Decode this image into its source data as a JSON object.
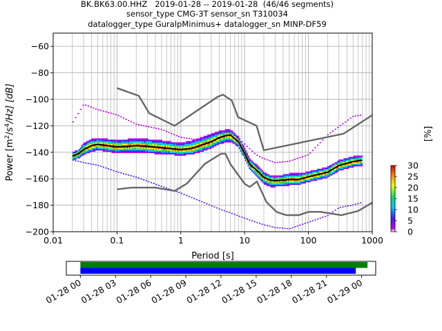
{
  "title_lines": [
    "BK.BK63.00.HHZ   2019-01-28 -- 2019-01-28  (46/46 segments)",
    "sensor_type CMG-3T sensor_sn T310034",
    "datalogger_type GuralpMinimus+ datalogger_sn MINP-DF59"
  ],
  "chart_data": [
    {
      "type": "heatmap",
      "subtype": "probabilistic-power-spectral-density",
      "xlabel": "Period [s]",
      "ylabel": "Power [m²/s⁴/Hz] [dB]",
      "ylabel_parts": [
        "Power [m",
        "2",
        "/s",
        "4",
        "/Hz] [dB]"
      ],
      "x_scale": "log",
      "xlim": [
        0.01,
        1000
      ],
      "ylim": [
        -200,
        -50
      ],
      "x_ticks": [
        0.01,
        0.1,
        1,
        10,
        100,
        1000
      ],
      "x_tick_labels": [
        "0.01",
        "0.1",
        "1",
        "10",
        "100",
        "1000"
      ],
      "y_ticks": [
        -200,
        -180,
        -160,
        -140,
        -120,
        -100,
        -80,
        -60
      ],
      "y_tick_labels": [
        "−200",
        "−180",
        "−160",
        "−140",
        "−120",
        "−100",
        "−80",
        "−60"
      ],
      "grid": true,
      "colorbar": {
        "label": "[%]",
        "range": [
          0,
          30
        ],
        "ticks": [
          0,
          5,
          10,
          15,
          20,
          25,
          30
        ],
        "tick_labels": [
          "0",
          "5",
          "10",
          "15",
          "20",
          "25",
          "30"
        ]
      },
      "colors": {
        "mean_line": "#000000",
        "noise_model": "#666666",
        "cmap": [
          "#ffffff",
          "#c000f0",
          "#4a1cff",
          "#00c8ff",
          "#00e070",
          "#f0ff00",
          "#ff8a00",
          "#e00000"
        ]
      },
      "noise_models": [
        {
          "name": "NHNM",
          "x": [
            0.1,
            0.22,
            0.32,
            0.8,
            3.8,
            4.6,
            6.3,
            7.9,
            15.4,
            20,
            354.8,
            1000
          ],
          "y": [
            -91.5,
            -97.4,
            -110.5,
            -120,
            -98,
            -96.5,
            -101,
            -113.5,
            -120,
            -138.5,
            -126,
            -112
          ]
        },
        {
          "name": "NLNM",
          "x": [
            0.1,
            0.17,
            0.4,
            0.8,
            1.24,
            2.4,
            4.3,
            5,
            6,
            10,
            12,
            15.6,
            21.9,
            31.6,
            45,
            70,
            101,
            154,
            328,
            600,
            1000
          ],
          "y": [
            -168,
            -166.7,
            -166.7,
            -169.2,
            -163.7,
            -148.6,
            -141.1,
            -141.1,
            -149,
            -163.8,
            -166.2,
            -162.1,
            -177.5,
            -185,
            -187.5,
            -187.5,
            -185,
            -185,
            -187.5,
            -184.4,
            -178
          ]
        }
      ],
      "mean_curve": {
        "x": [
          0.02,
          0.025,
          0.03,
          0.04,
          0.05,
          0.07,
          0.1,
          0.15,
          0.2,
          0.3,
          0.5,
          0.8,
          1,
          1.5,
          2,
          3,
          4,
          5,
          6,
          8,
          10,
          12,
          15,
          20,
          25,
          30,
          40,
          50,
          70,
          100,
          150,
          200,
          300,
          500,
          700
        ],
        "y": [
          -143,
          -141,
          -138,
          -135,
          -134,
          -135,
          -136,
          -135.5,
          -135,
          -135.5,
          -136.5,
          -137.5,
          -138,
          -137,
          -135,
          -132,
          -129,
          -127.5,
          -127,
          -132,
          -141,
          -149,
          -153,
          -159,
          -161,
          -161.5,
          -161,
          -160.5,
          -160.5,
          -158.5,
          -156.5,
          -155,
          -150,
          -147,
          -146
        ]
      },
      "density_band": {
        "x": [
          0.02,
          0.025,
          0.03,
          0.04,
          0.05,
          0.07,
          0.1,
          0.15,
          0.2,
          0.3,
          0.5,
          0.8,
          1,
          1.5,
          2,
          3,
          4,
          5,
          6,
          8,
          10,
          12,
          15,
          20,
          25,
          30,
          40,
          50,
          70,
          100,
          150,
          200,
          300,
          500,
          700
        ],
        "upper": [
          -140,
          -138,
          -133,
          -130,
          -129.5,
          -130,
          -130.5,
          -130,
          -129.5,
          -130,
          -131,
          -132.5,
          -133,
          -131,
          -129,
          -126,
          -124,
          -123,
          -123,
          -128,
          -137,
          -145,
          -149,
          -155,
          -157.5,
          -158,
          -157,
          -156,
          -156,
          -154.5,
          -152.5,
          -151,
          -146,
          -143,
          -143
        ],
        "lower": [
          -146,
          -144.5,
          -142,
          -139.5,
          -138.5,
          -139.5,
          -140.5,
          -140,
          -140,
          -140.5,
          -141.5,
          -142,
          -142.5,
          -141.5,
          -140,
          -137,
          -134,
          -132.5,
          -132,
          -136,
          -145,
          -153,
          -158,
          -164,
          -166,
          -166,
          -165.5,
          -165,
          -164.5,
          -162.5,
          -160.5,
          -159,
          -154,
          -151,
          -150
        ]
      },
      "outlier_upper": {
        "x": [
          0.02,
          0.03,
          0.05,
          0.1,
          0.2,
          0.5,
          1,
          2,
          4,
          6,
          10,
          15,
          20,
          30,
          50,
          100,
          200,
          500,
          700
        ],
        "y": [
          -118,
          -104,
          -108,
          -112,
          -119,
          -123,
          -129,
          -131,
          -126,
          -125,
          -134,
          -142,
          -145,
          -148,
          -147,
          -142,
          -127,
          -113,
          -112
        ]
      },
      "outlier_lower": {
        "x": [
          0.02,
          0.03,
          0.05,
          0.1,
          0.2,
          0.5,
          1,
          2,
          4,
          6,
          10,
          15,
          20,
          30,
          50,
          100,
          200,
          300,
          500,
          700
        ],
        "y": [
          -146,
          -148,
          -150,
          -155,
          -159,
          -166,
          -171,
          -177,
          -183,
          -186,
          -190,
          -193,
          -195,
          -197,
          -198,
          -193,
          -188,
          -182,
          -180,
          -178
        ]
      }
    },
    {
      "type": "timeline",
      "subtype": "data-coverage",
      "x_tick_labels": [
        "01-28 00",
        "01-28 03",
        "01-28 06",
        "01-28 09",
        "01-28 12",
        "01-28 15",
        "01-28 18",
        "01-28 21",
        "01-29 00"
      ],
      "x_tick_hours": [
        0,
        3,
        6,
        9,
        12,
        15,
        18,
        21,
        24
      ],
      "xlim_hours": [
        -1.2,
        25.2
      ],
      "bars": [
        {
          "color": "#008000",
          "start_hour": 0,
          "end_hour": 24.5
        },
        {
          "color": "#0000ff",
          "start_hour": 0,
          "end_hour": 23.5
        }
      ]
    }
  ]
}
